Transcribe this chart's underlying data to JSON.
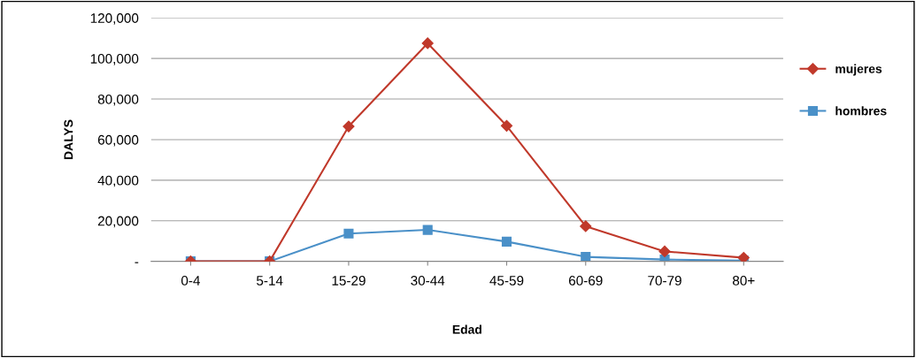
{
  "chart_data": {
    "type": "line",
    "xlabel": "Edad",
    "ylabel": "DALYS",
    "categories": [
      "0-4",
      "5-14",
      "15-29",
      "30-44",
      "45-59",
      "60-69",
      "70-79",
      "80+"
    ],
    "series": [
      {
        "name": "mujeres",
        "color": "#c0392b",
        "marker": "diamond",
        "values": [
          0,
          0,
          66500,
          107500,
          66800,
          17300,
          4900,
          1800
        ]
      },
      {
        "name": "hombres",
        "color": "#4a90c8",
        "marker": "square",
        "values": [
          0,
          0,
          13700,
          15500,
          9700,
          2200,
          900,
          400
        ]
      }
    ],
    "ylim": [
      0,
      120000
    ],
    "yticks": [
      {
        "value": 0,
        "label": "-"
      },
      {
        "value": 20000,
        "label": "20,000"
      },
      {
        "value": 40000,
        "label": "40,000"
      },
      {
        "value": 60000,
        "label": "60,000"
      },
      {
        "value": 80000,
        "label": "80,000"
      },
      {
        "value": 100000,
        "label": "100,000"
      },
      {
        "value": 120000,
        "label": "120,000"
      }
    ],
    "grid": "y",
    "legend": "right",
    "line_style": "solid"
  }
}
